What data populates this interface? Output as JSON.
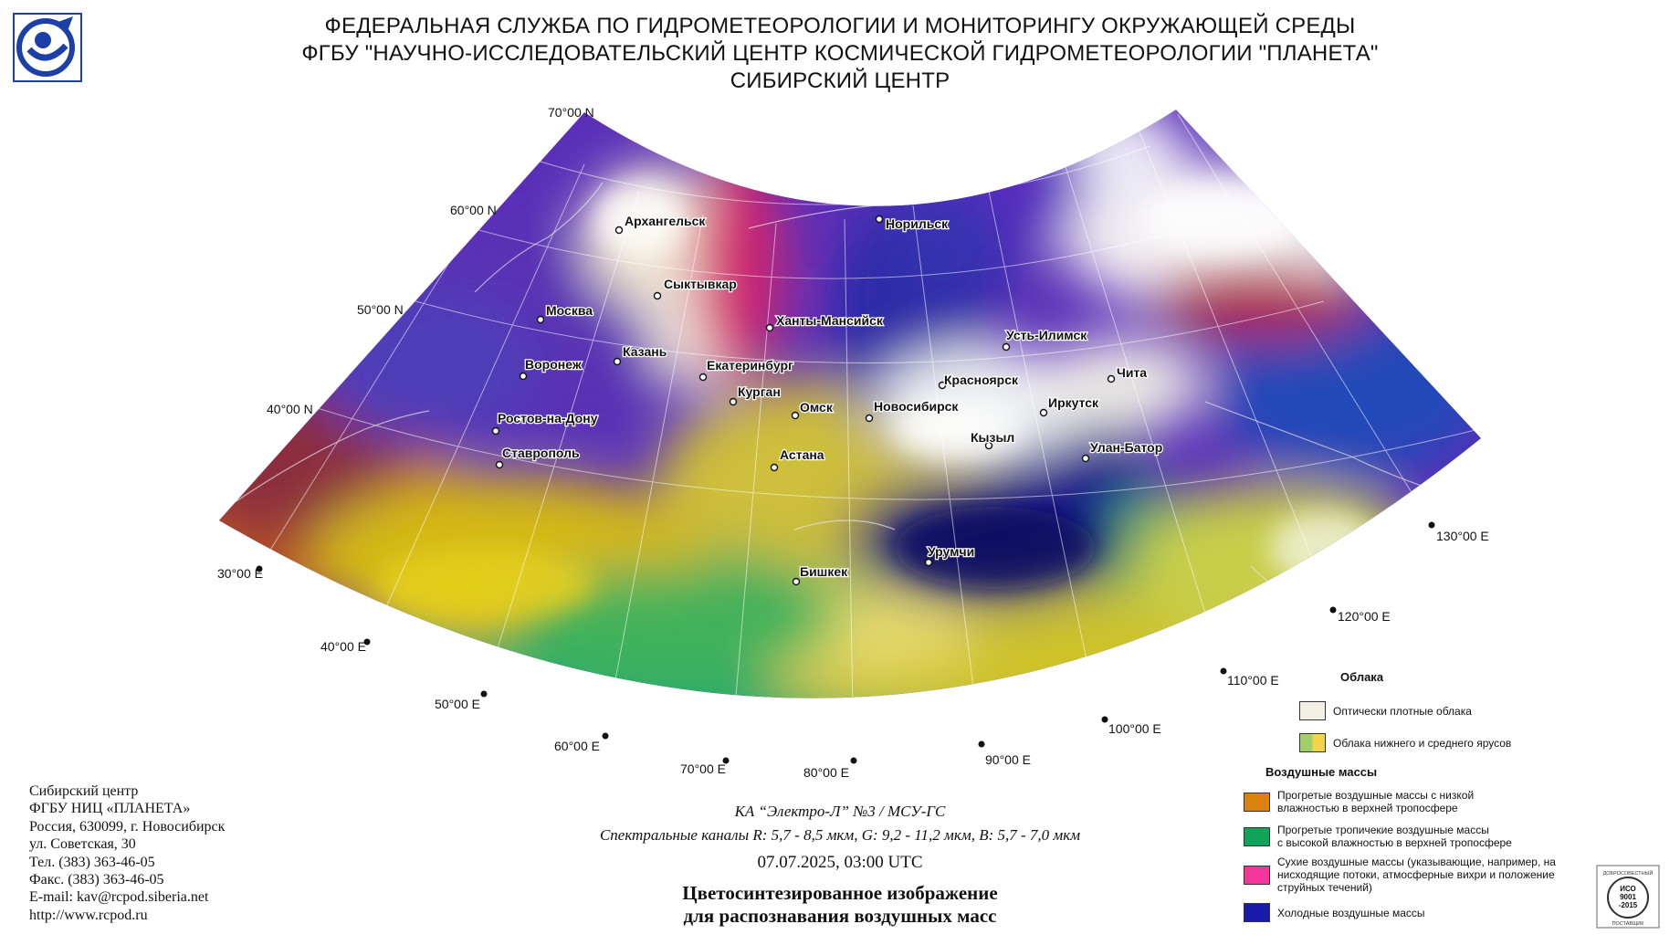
{
  "header": {
    "line1": "ФЕДЕРАЛЬНАЯ СЛУЖБА ПО ГИДРОМЕТЕОРОЛОГИИ И МОНИТОРИНГУ ОКРУЖАЮЩЕЙ СРЕДЫ",
    "line2": "ФГБУ \"НАУЧНО-ИССЛЕДОВАТЕЛЬСКИЙ ЦЕНТР КОСМИЧЕСКОЙ ГИДРОМЕТЕОРОЛОГИИ \"ПЛАНЕТА\"",
    "line3": "СИБИРСКИЙ ЦЕНТР",
    "logo_icon": "planeta-logo-icon"
  },
  "map": {
    "latitudes": [
      "70°00 N",
      "60°00 N",
      "50°00 N",
      "40°00 N"
    ],
    "longitudes": [
      "30°00 E",
      "40°00 E",
      "50°00 E",
      "60°00 E",
      "70°00 E",
      "80°00 E",
      "90°00 E",
      "100°00 E",
      "110°00 E",
      "120°00 E",
      "130°00 E"
    ],
    "cities": [
      "Архангельск",
      "Норильск",
      "Сыктывкар",
      "Москва",
      "Ханты-Мансийск",
      "Казань",
      "Усть-Илимск",
      "Воронеж",
      "Екатеринбург",
      "Чита",
      "Красноярск",
      "Курган",
      "Омск",
      "Новосибирск",
      "Иркутск",
      "Ростов-на-Дону",
      "Кызыл",
      "Улан-Батор",
      "Ставрополь",
      "Астана",
      "Урумчи",
      "Бишкек"
    ]
  },
  "info": {
    "l1": "Сибирский центр",
    "l2": "ФГБУ НИЦ «ПЛАНЕТА»",
    "l3": "Россия, 630099, г. Новосибирск",
    "l4": "ул. Советская, 30",
    "l5": "Тел. (383) 363-46-05",
    "l6": "Факс. (383) 363-46-05",
    "l7": "E-mail: kav@rcpod.siberia.net",
    "l8": "http://www.rcpod.ru"
  },
  "caption": {
    "satellite": "КА “Электро-Л” №3 / МСУ-ГС",
    "channels": "Спектральные каналы R: 5,7 - 8,5 мкм, G: 9,2 - 11,2 мкм, B: 5,7 - 7,0 мкм",
    "datetime": "07.07.2025, 03:00 UTC",
    "title1": "Цветосинтезированное изображение",
    "title2": "для распознавания воздушных масс"
  },
  "legend": {
    "clouds_title": "Облака",
    "cloud_dense": "Оптически плотные облака",
    "cloud_low": "Облака нижнего и среднего ярусов",
    "air_title": "Воздушные массы",
    "warm_dry_1": "Прогретые воздушные массы с низкой",
    "warm_dry_2": "влажностью в верхней тропосфере",
    "warm_wet_1": "Прогретые тропичекие воздушные массы",
    "warm_wet_2": "с высокой влажностью в верхней тропосфере",
    "dry_1": "Сухие воздушные массы (указывающие, например, на",
    "dry_2": "нисходящие потоки, атмосферные вихри и положение",
    "dry_3": "струйных течений)",
    "cold": "Холодные воздушные массы",
    "colors": {
      "cloud_dense": "#f2f0e2",
      "cloud_low_a": "#9fd06a",
      "cloud_low_b": "#f2d34a",
      "warm_dry": "#d9820d",
      "warm_wet": "#10a35a",
      "dry": "#f2369a",
      "cold": "#1a1aa8"
    }
  },
  "iso": {
    "top": "ДОБРОСОВЕСТНЫЙ",
    "l1": "ИСО",
    "l2": "9001",
    "l3": "-2015",
    "bottom": "ПОСТАВЩИК"
  }
}
